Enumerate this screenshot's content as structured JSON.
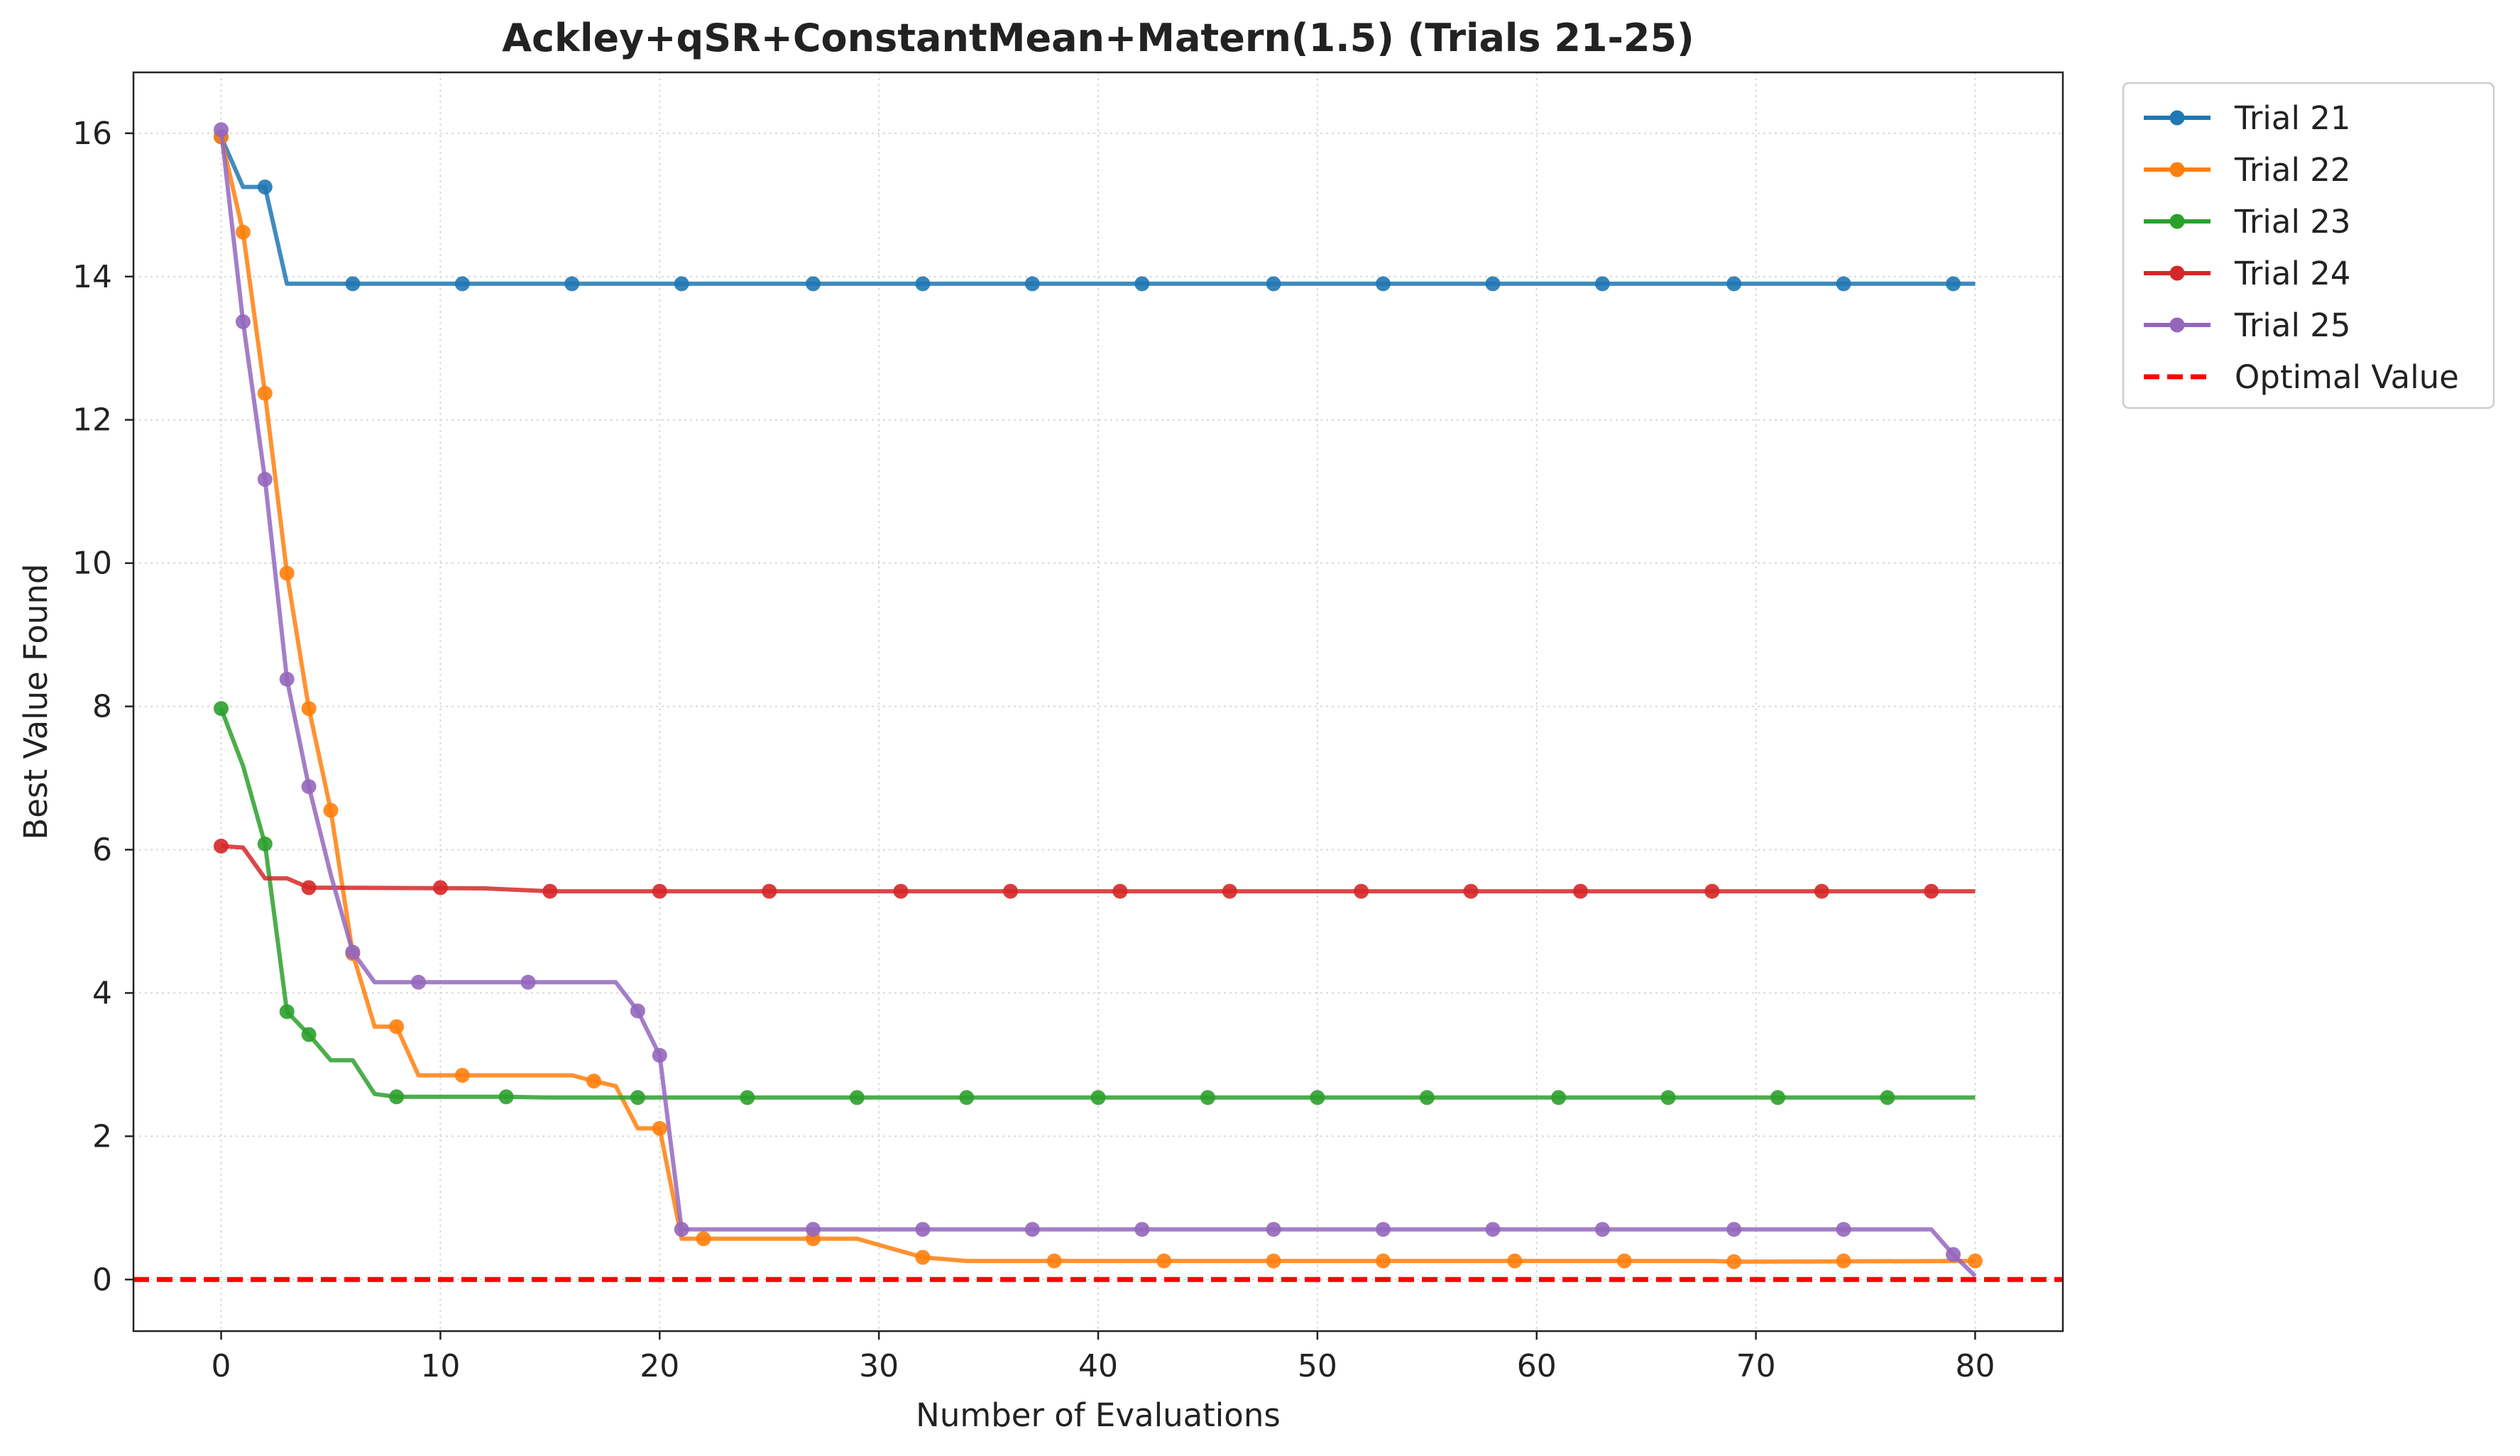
{
  "chart_data": {
    "type": "line",
    "title": "Ackley+qSR+ConstantMean+Matern(1.5) (Trials 21-25)",
    "xlabel": "Number of Evaluations",
    "ylabel": "Best Value Found",
    "xlim": [
      -4,
      84
    ],
    "ylim": [
      -0.72,
      16.85
    ],
    "xticks": [
      "0",
      "10",
      "20",
      "30",
      "40",
      "50",
      "60",
      "70",
      "80"
    ],
    "yticks": [
      "0",
      "2",
      "4",
      "6",
      "8",
      "10",
      "12",
      "14",
      "16"
    ],
    "grid": true,
    "legend_position": "outside-top-right",
    "optimal_value": 0,
    "optimal_label": "Optimal Value",
    "optimal_color": "#ff0000",
    "series": [
      {
        "name": "Trial 21",
        "color": "#1f77b4",
        "line": [
          [
            0,
            15.95
          ],
          [
            1,
            15.25
          ],
          [
            2,
            15.25
          ],
          [
            3,
            13.9
          ],
          [
            80,
            13.9
          ]
        ],
        "markers": [
          [
            0,
            15.95
          ],
          [
            2,
            15.25
          ],
          [
            6,
            13.9
          ],
          [
            11,
            13.9
          ],
          [
            16,
            13.9
          ],
          [
            21,
            13.9
          ],
          [
            27,
            13.9
          ],
          [
            32,
            13.9
          ],
          [
            37,
            13.9
          ],
          [
            42,
            13.9
          ],
          [
            48,
            13.9
          ],
          [
            53,
            13.9
          ],
          [
            58,
            13.9
          ],
          [
            63,
            13.9
          ],
          [
            69,
            13.9
          ],
          [
            74,
            13.9
          ],
          [
            79,
            13.9
          ]
        ]
      },
      {
        "name": "Trial 22",
        "color": "#ff7f0e",
        "line": [
          [
            0,
            15.95
          ],
          [
            1,
            14.62
          ],
          [
            2,
            12.37
          ],
          [
            3,
            9.86
          ],
          [
            4,
            7.97
          ],
          [
            5,
            6.55
          ],
          [
            6,
            4.55
          ],
          [
            7,
            3.53
          ],
          [
            8,
            3.53
          ],
          [
            9,
            2.85
          ],
          [
            16,
            2.85
          ],
          [
            17,
            2.77
          ],
          [
            18,
            2.7
          ],
          [
            19,
            2.11
          ],
          [
            20,
            2.11
          ],
          [
            21,
            0.57
          ],
          [
            29,
            0.57
          ],
          [
            32,
            0.31
          ],
          [
            34,
            0.26
          ],
          [
            68,
            0.26
          ],
          [
            69,
            0.25
          ],
          [
            80,
            0.26
          ]
        ],
        "markers": [
          [
            0,
            15.95
          ],
          [
            1,
            14.62
          ],
          [
            2,
            12.37
          ],
          [
            3,
            9.86
          ],
          [
            4,
            7.97
          ],
          [
            5,
            6.55
          ],
          [
            6,
            4.55
          ],
          [
            8,
            3.53
          ],
          [
            11,
            2.85
          ],
          [
            17,
            2.77
          ],
          [
            20,
            2.11
          ],
          [
            22,
            0.57
          ],
          [
            27,
            0.57
          ],
          [
            32,
            0.31
          ],
          [
            38,
            0.26
          ],
          [
            43,
            0.26
          ],
          [
            48,
            0.26
          ],
          [
            53,
            0.26
          ],
          [
            59,
            0.26
          ],
          [
            64,
            0.26
          ],
          [
            69,
            0.25
          ],
          [
            74,
            0.26
          ],
          [
            80,
            0.26
          ]
        ]
      },
      {
        "name": "Trial 23",
        "color": "#2ca02c",
        "line": [
          [
            0,
            7.97
          ],
          [
            1,
            7.17
          ],
          [
            2,
            6.08
          ],
          [
            3,
            3.74
          ],
          [
            4,
            3.42
          ],
          [
            5,
            3.06
          ],
          [
            6,
            3.06
          ],
          [
            7,
            2.59
          ],
          [
            8,
            2.55
          ],
          [
            13,
            2.55
          ],
          [
            15,
            2.54
          ],
          [
            80,
            2.54
          ]
        ],
        "markers": [
          [
            0,
            7.97
          ],
          [
            2,
            6.08
          ],
          [
            3,
            3.74
          ],
          [
            4,
            3.42
          ],
          [
            8,
            2.55
          ],
          [
            13,
            2.55
          ],
          [
            19,
            2.54
          ],
          [
            24,
            2.54
          ],
          [
            29,
            2.54
          ],
          [
            34,
            2.54
          ],
          [
            40,
            2.54
          ],
          [
            45,
            2.54
          ],
          [
            50,
            2.54
          ],
          [
            55,
            2.54
          ],
          [
            61,
            2.54
          ],
          [
            66,
            2.54
          ],
          [
            71,
            2.54
          ],
          [
            76,
            2.54
          ]
        ]
      },
      {
        "name": "Trial 24",
        "color": "#d62728",
        "line": [
          [
            0,
            6.05
          ],
          [
            1,
            6.03
          ],
          [
            2,
            5.6
          ],
          [
            3,
            5.6
          ],
          [
            4,
            5.47
          ],
          [
            12,
            5.46
          ],
          [
            15,
            5.42
          ],
          [
            80,
            5.42
          ]
        ],
        "markers": [
          [
            0,
            6.05
          ],
          [
            4,
            5.47
          ],
          [
            10,
            5.47
          ],
          [
            15,
            5.42
          ],
          [
            20,
            5.42
          ],
          [
            25,
            5.42
          ],
          [
            31,
            5.42
          ],
          [
            36,
            5.42
          ],
          [
            41,
            5.42
          ],
          [
            46,
            5.42
          ],
          [
            52,
            5.42
          ],
          [
            57,
            5.42
          ],
          [
            62,
            5.42
          ],
          [
            68,
            5.42
          ],
          [
            73,
            5.42
          ],
          [
            78,
            5.42
          ]
        ]
      },
      {
        "name": "Trial 25",
        "color": "#9467bd",
        "line": [
          [
            0,
            16.05
          ],
          [
            1,
            13.37
          ],
          [
            2,
            11.17
          ],
          [
            3,
            8.38
          ],
          [
            4,
            6.88
          ],
          [
            5,
            5.65
          ],
          [
            6,
            4.57
          ],
          [
            7,
            4.15
          ],
          [
            18,
            4.15
          ],
          [
            19,
            3.75
          ],
          [
            20,
            3.13
          ],
          [
            21,
            0.7
          ],
          [
            78,
            0.7
          ],
          [
            79,
            0.35
          ],
          [
            80,
            0.05
          ]
        ],
        "markers": [
          [
            0,
            16.05
          ],
          [
            1,
            13.37
          ],
          [
            2,
            11.17
          ],
          [
            3,
            8.38
          ],
          [
            4,
            6.88
          ],
          [
            6,
            4.57
          ],
          [
            9,
            4.15
          ],
          [
            14,
            4.15
          ],
          [
            19,
            3.75
          ],
          [
            20,
            3.13
          ],
          [
            21,
            0.7
          ],
          [
            27,
            0.7
          ],
          [
            32,
            0.7
          ],
          [
            37,
            0.7
          ],
          [
            42,
            0.7
          ],
          [
            48,
            0.7
          ],
          [
            53,
            0.7
          ],
          [
            58,
            0.7
          ],
          [
            63,
            0.7
          ],
          [
            69,
            0.7
          ],
          [
            74,
            0.7
          ],
          [
            79,
            0.35
          ]
        ]
      }
    ]
  }
}
